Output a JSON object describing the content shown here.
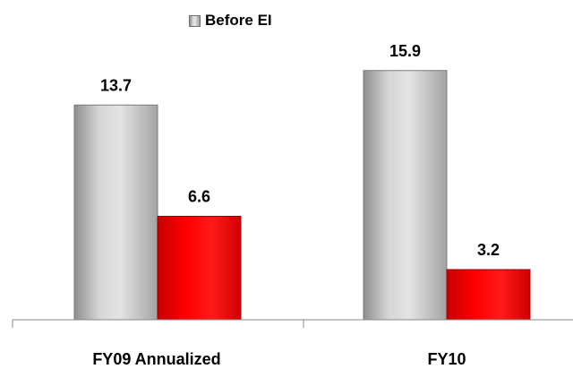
{
  "chart_data": {
    "type": "bar",
    "categories": [
      "FY09 Annualized",
      "FY10"
    ],
    "series": [
      {
        "name": "Before EI",
        "color": "#c0c0c0",
        "values": [
          13.7,
          15.9
        ]
      },
      {
        "name": "",
        "color": "#ff0000",
        "values": [
          6.6,
          3.2
        ]
      }
    ],
    "data_labels": [
      [
        "13.7",
        "15.9"
      ],
      [
        "6.6",
        "3.2"
      ]
    ],
    "legend": {
      "items": [
        "Before EI"
      ],
      "position": "top"
    },
    "title": "",
    "xlabel": "",
    "ylabel": "",
    "ylim": [
      0,
      18
    ],
    "grid": false
  }
}
